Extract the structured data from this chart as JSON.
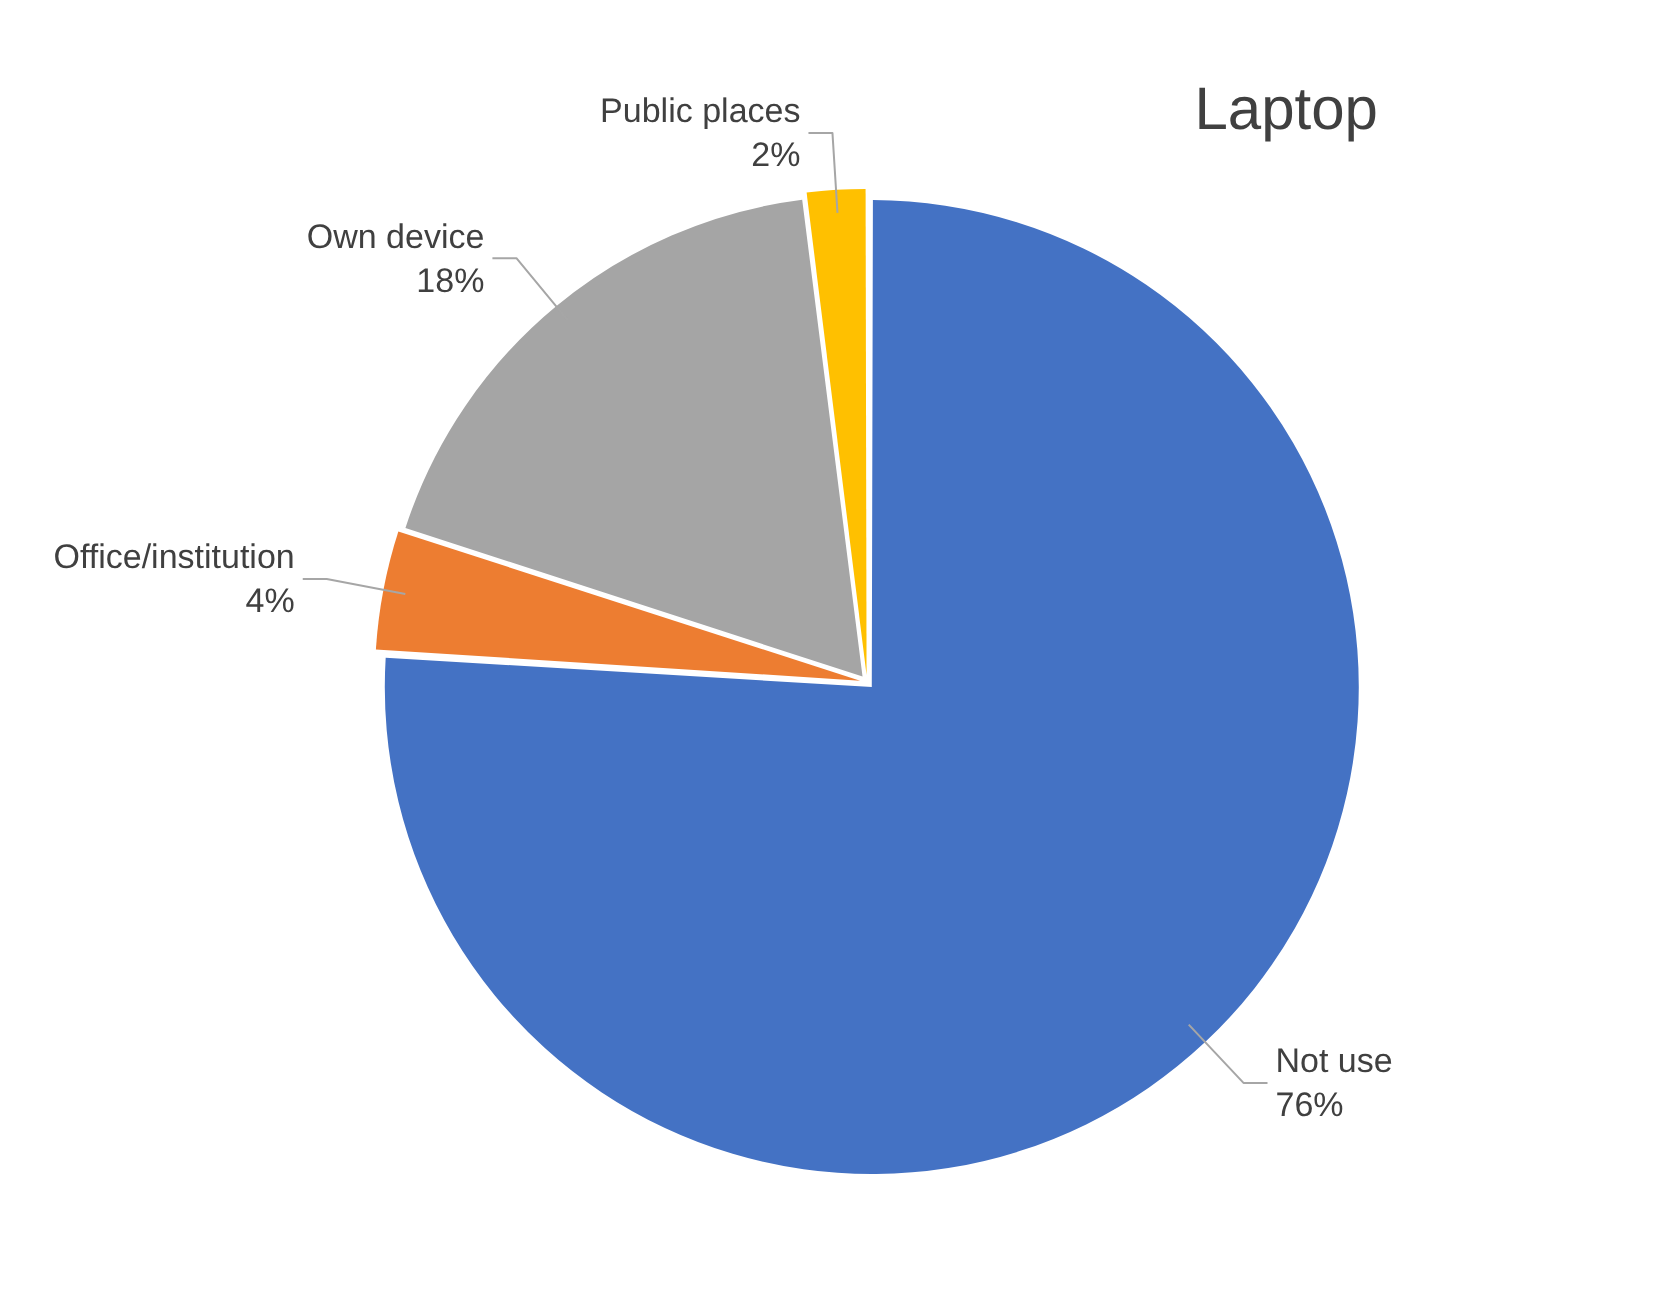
{
  "chart_data": {
    "type": "pie",
    "title": "Laptop",
    "categories": [
      "Not use",
      "Office/institution",
      "Own device",
      "Public places"
    ],
    "values": [
      76,
      4,
      18,
      2
    ],
    "colors": [
      "#4472c4",
      "#ed7d31",
      "#a5a5a5",
      "#ffc000"
    ],
    "value_labels": [
      "76%",
      "4%",
      "18%",
      "2%"
    ],
    "legend": false
  }
}
